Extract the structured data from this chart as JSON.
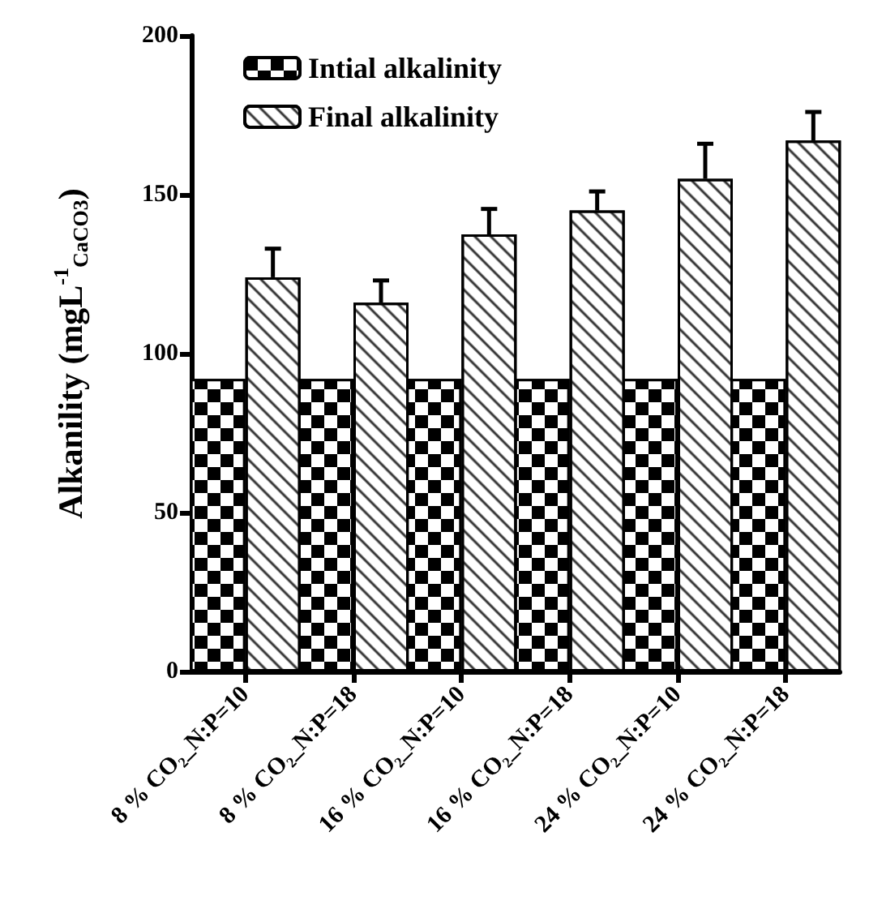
{
  "chart_data": {
    "type": "bar",
    "ylabel": "Alkanility (mgL$^{-1}$$_{CaCO3}$)",
    "categories": [
      "8 % CO₂_N:P=10",
      "8 % CO₂_N:P=18",
      "16 % CO₂_N:P=10",
      "16 % CO₂_N:P=18",
      "24 % CO₂_N:P=10",
      "24 % CO₂_N:P=18"
    ],
    "series": [
      {
        "name": "Intial alkalinity",
        "color": "#000000",
        "values": [
          92,
          92,
          92,
          92,
          92,
          92
        ]
      },
      {
        "name": "Final alkalinity",
        "color": "#ffffff",
        "values": [
          124,
          116,
          137.5,
          145,
          155,
          167
        ],
        "errors": [
          9,
          7,
          8,
          6,
          11,
          9
        ]
      }
    ],
    "ylim": [
      0,
      200
    ],
    "yticks": [
      0,
      50,
      100,
      150,
      200
    ],
    "grid": false,
    "legend": "top left"
  }
}
